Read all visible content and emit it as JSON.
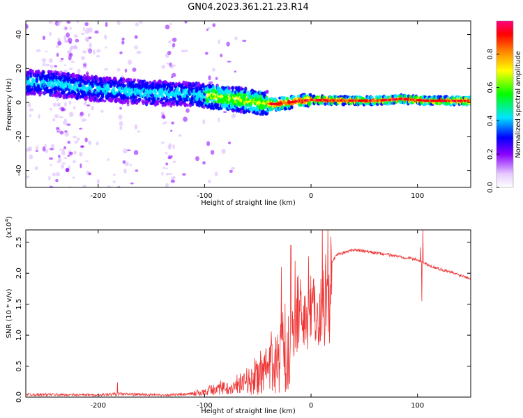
{
  "title": "GN04.2023.361.21.23.R14",
  "chart_data": [
    {
      "type": "heatmap",
      "xlabel": "Height of straight line (km)",
      "ylabel": "Frequency (Hz)",
      "xlim": [
        -268,
        150
      ],
      "ylim": [
        -50,
        48
      ],
      "xticks": [
        -200,
        -100,
        0,
        100
      ],
      "yticks": [
        -40,
        -20,
        0,
        20,
        40
      ],
      "grid": false,
      "ridge": [
        {
          "x": -268,
          "f": 12
        },
        {
          "x": -240,
          "f": 11
        },
        {
          "x": -220,
          "f": 9
        },
        {
          "x": -200,
          "f": 8
        },
        {
          "x": -180,
          "f": 7
        },
        {
          "x": -160,
          "f": 6
        },
        {
          "x": -140,
          "f": 5.5
        },
        {
          "x": -120,
          "f": 5
        },
        {
          "x": -100,
          "f": 4
        },
        {
          "x": -80,
          "f": 2.5
        },
        {
          "x": -60,
          "f": 1
        },
        {
          "x": -45,
          "f": -0.5
        },
        {
          "x": -35,
          "f": -1
        },
        {
          "x": -20,
          "f": 0
        },
        {
          "x": -10,
          "f": 1
        },
        {
          "x": 0,
          "f": 1.5
        },
        {
          "x": 20,
          "f": 1.2
        },
        {
          "x": 60,
          "f": 1
        },
        {
          "x": 85,
          "f": 2
        },
        {
          "x": 110,
          "f": 1
        },
        {
          "x": 150,
          "f": 1
        }
      ],
      "colorbar": {
        "label": "Normalized spectral amplitude",
        "range": [
          0,
          1
        ],
        "ticks": [
          "0.0",
          "0.2",
          "0.4",
          "0.6",
          "0.8"
        ],
        "colors": [
          "#ffffff",
          "#d9b3ff",
          "#8a00ff",
          "#0000ff",
          "#00e5ff",
          "#00ff00",
          "#ffff00",
          "#ff8000",
          "#ff0000",
          "#ff0080"
        ]
      }
    },
    {
      "type": "line",
      "xlabel": "Height of straight line (km)",
      "ylabel": "SNR (10 * v/v)",
      "scale_label": "(x10^4)",
      "xlim": [
        -268,
        150
      ],
      "ylim": [
        0,
        2.7
      ],
      "xticks": [
        -200,
        -100,
        0,
        100
      ],
      "yticks": [
        "0.0",
        "0.5",
        "1.0",
        "1.5",
        "2.0",
        "2.5"
      ],
      "color": "#ee3333",
      "grid": false,
      "envelope": [
        {
          "x": -268,
          "y": 0.05
        },
        {
          "x": -200,
          "y": 0.04
        },
        {
          "x": -182,
          "y": 0.06
        },
        {
          "x": -140,
          "y": 0.04
        },
        {
          "x": -115,
          "y": 0.05
        },
        {
          "x": -100,
          "y": 0.12
        },
        {
          "x": -80,
          "y": 0.22
        },
        {
          "x": -60,
          "y": 0.35
        },
        {
          "x": -45,
          "y": 0.6
        },
        {
          "x": -35,
          "y": 0.9
        },
        {
          "x": -25,
          "y": 1.25
        },
        {
          "x": -15,
          "y": 1.6
        },
        {
          "x": -5,
          "y": 1.8
        },
        {
          "x": 5,
          "y": 1.9
        },
        {
          "x": 15,
          "y": 2.1
        },
        {
          "x": 25,
          "y": 2.3
        },
        {
          "x": 40,
          "y": 2.38
        },
        {
          "x": 60,
          "y": 2.33
        },
        {
          "x": 80,
          "y": 2.28
        },
        {
          "x": 100,
          "y": 2.22
        },
        {
          "x": 110,
          "y": 2.13
        },
        {
          "x": 130,
          "y": 2.02
        },
        {
          "x": 150,
          "y": 1.92
        }
      ],
      "spikes": [
        {
          "x": -182,
          "y": 0.24
        },
        {
          "x": -28,
          "y": 2.1
        },
        {
          "x": -19,
          "y": 2.45
        },
        {
          "x": -15,
          "y": 2.2
        },
        {
          "x": 103,
          "y": 2.42
        },
        {
          "x": 104,
          "y": 1.55
        },
        {
          "x": 105,
          "y": 2.72
        }
      ]
    }
  ]
}
